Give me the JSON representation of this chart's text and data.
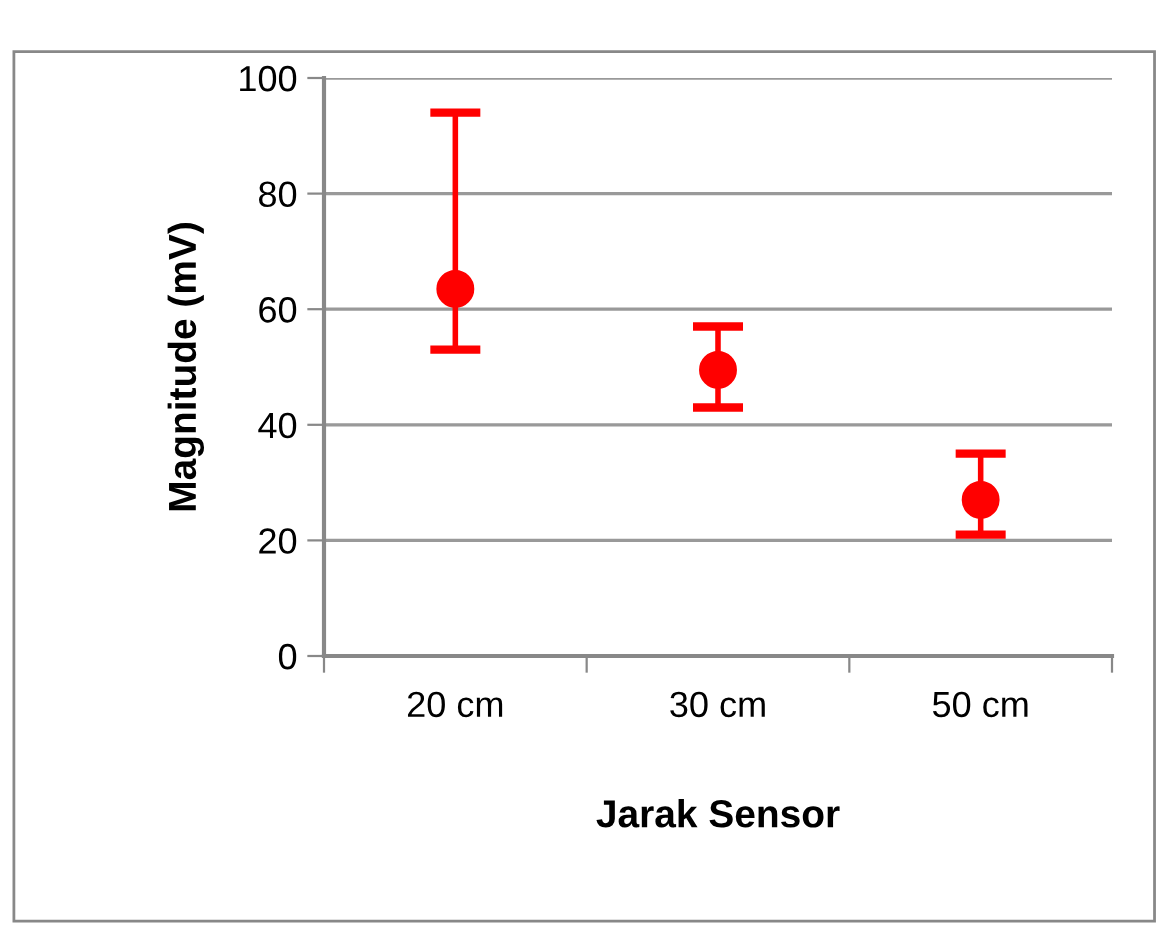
{
  "chart_data": {
    "type": "scatter",
    "xlabel": "Jarak Sensor",
    "ylabel": "Magnitude (mV)",
    "categories": [
      "20 cm",
      "30 cm",
      "50 cm"
    ],
    "series": [
      {
        "color": "#ff0000",
        "values": [
          63.5,
          49.5,
          27
        ],
        "errors": [
          [
            53,
            94
          ],
          [
            43,
            57
          ],
          [
            21,
            35
          ]
        ]
      }
    ],
    "ylim": [
      0,
      100
    ],
    "yticks": [
      0,
      20,
      40,
      60,
      80,
      100
    ],
    "grid": "y",
    "marker": "circle",
    "legend": false
  }
}
